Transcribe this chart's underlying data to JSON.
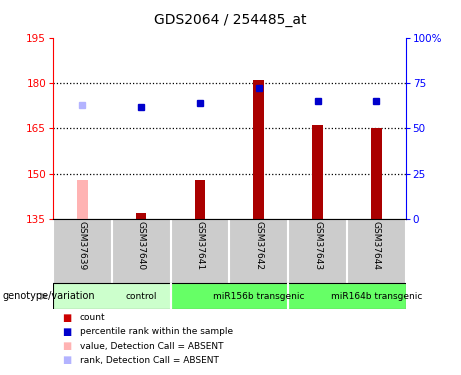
{
  "title": "GDS2064 / 254485_at",
  "samples": [
    "GSM37639",
    "GSM37640",
    "GSM37641",
    "GSM37642",
    "GSM37643",
    "GSM37644"
  ],
  "bar_values": [
    148,
    137,
    148,
    181,
    166,
    165
  ],
  "bar_colors": [
    "#ffb3b3",
    "#aa0000",
    "#aa0000",
    "#aa0000",
    "#aa0000",
    "#aa0000"
  ],
  "rank_percentiles": [
    63,
    62,
    64,
    72,
    65,
    65
  ],
  "rank_colors": [
    "#b3b3ff",
    "#0000cc",
    "#0000cc",
    "#0000cc",
    "#0000cc",
    "#0000cc"
  ],
  "ylim_left": [
    135,
    195
  ],
  "ylim_right": [
    0,
    100
  ],
  "yticks_left": [
    135,
    150,
    165,
    180,
    195
  ],
  "yticks_right": [
    0,
    25,
    50,
    75,
    100
  ],
  "ytick_labels_right": [
    "0",
    "25",
    "50",
    "75",
    "100%"
  ],
  "groups": [
    {
      "label": "control",
      "span": [
        0,
        2
      ],
      "color": "#ccffcc"
    },
    {
      "label": "miR156b transgenic",
      "span": [
        2,
        4
      ],
      "color": "#66ff66"
    },
    {
      "label": "miR164b transgenic",
      "span": [
        4,
        6
      ],
      "color": "#66ff66"
    }
  ],
  "legend_items": [
    {
      "label": "count",
      "color": "#cc0000"
    },
    {
      "label": "percentile rank within the sample",
      "color": "#0000cc"
    },
    {
      "label": "value, Detection Call = ABSENT",
      "color": "#ffb3b3"
    },
    {
      "label": "rank, Detection Call = ABSENT",
      "color": "#b3b3ff"
    }
  ],
  "xlabel_genotype": "genotype/variation",
  "bar_width": 0.18,
  "grid_lines": [
    150,
    165,
    180
  ]
}
